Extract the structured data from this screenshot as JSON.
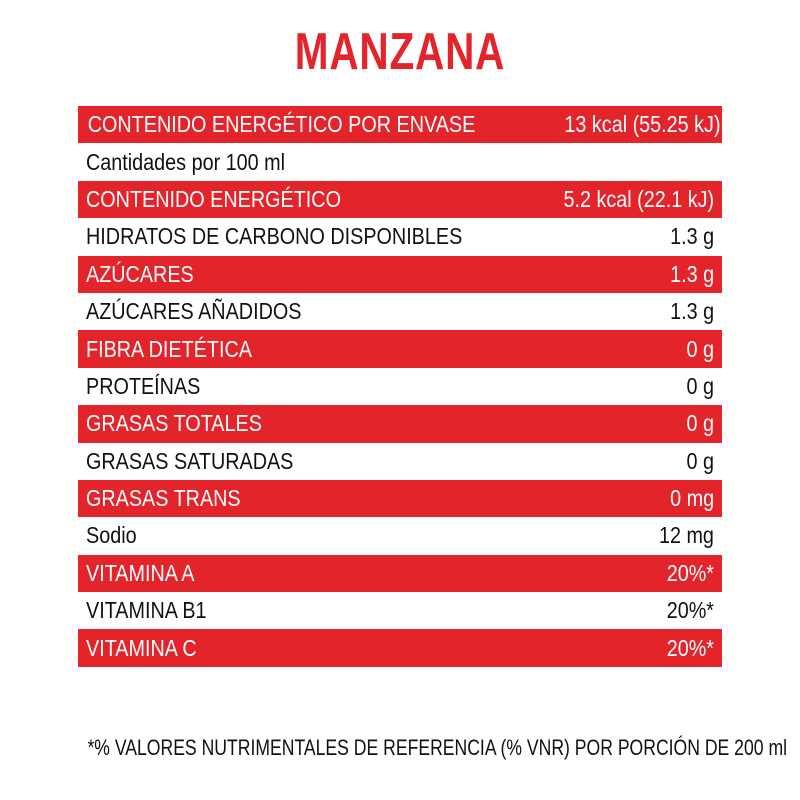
{
  "title": "MANZANA",
  "colors": {
    "accent": "#e3242b",
    "text": "#111111",
    "background": "#ffffff"
  },
  "rows": [
    {
      "label": "CONTENIDO ENERGÉTICO POR ENVASE",
      "value": "13 kcal (55.25 kJ)",
      "highlight": true
    },
    {
      "label": "Cantidades por 100 ml",
      "value": "",
      "highlight": false
    },
    {
      "label": "CONTENIDO ENERGÉTICO",
      "value": "5.2 kcal (22.1 kJ)",
      "highlight": true
    },
    {
      "label": "HIDRATOS DE CARBONO DISPONIBLES",
      "value": "1.3 g",
      "highlight": false
    },
    {
      "label": "AZÚCARES",
      "value": "1.3 g",
      "highlight": true
    },
    {
      "label": "AZÚCARES AÑADIDOS",
      "value": "1.3 g",
      "highlight": false
    },
    {
      "label": "FIBRA DIETÉTICA",
      "value": "0 g",
      "highlight": true
    },
    {
      "label": "PROTEÍNAS",
      "value": "0 g",
      "highlight": false
    },
    {
      "label": "GRASAS TOTALES",
      "value": "0 g",
      "highlight": true
    },
    {
      "label": "GRASAS SATURADAS",
      "value": "0 g",
      "highlight": false
    },
    {
      "label": "GRASAS TRANS",
      "value": "0 mg",
      "highlight": true
    },
    {
      "label": "Sodio",
      "value": "12 mg",
      "highlight": false
    },
    {
      "label": "VITAMINA A",
      "value": "20%*",
      "highlight": true
    },
    {
      "label": "VITAMINA B1",
      "value": "20%*",
      "highlight": false
    },
    {
      "label": "VITAMINA C",
      "value": "20%*",
      "highlight": true
    }
  ],
  "footnote": "*% VALORES NUTRIMENTALES DE REFERENCIA (% VNR) POR PORCIÓN DE 200 ml"
}
